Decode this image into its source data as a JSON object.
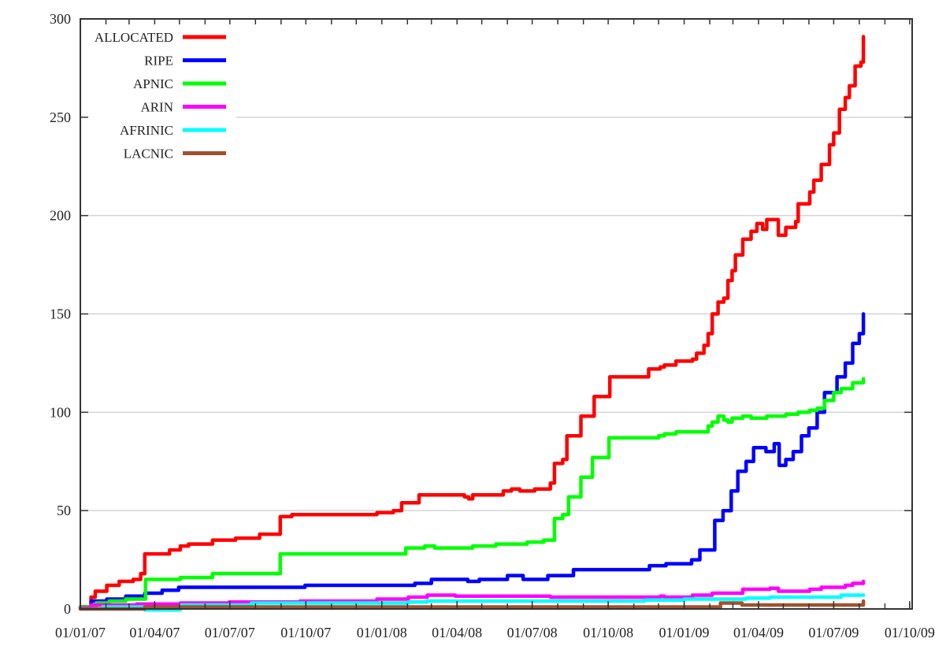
{
  "chart_data": {
    "type": "line",
    "title": "",
    "xlabel": "",
    "ylabel": "",
    "x_type": "date",
    "xlim": [
      "2007-01-01",
      "2009-10-04"
    ],
    "ylim": [
      0,
      300
    ],
    "grid": "horizontal",
    "legend_placement": "top-left",
    "interpolation": "step",
    "x_ticks": [
      "2007-01-01",
      "2007-04-01",
      "2007-07-01",
      "2007-10-01",
      "2008-01-01",
      "2008-04-01",
      "2008-07-01",
      "2008-10-01",
      "2009-01-01",
      "2009-04-01",
      "2009-07-01",
      "2009-10-01"
    ],
    "x_tick_labels": [
      "01/01/07",
      "01/04/07",
      "01/07/07",
      "01/10/07",
      "01/01/08",
      "01/04/08",
      "01/07/08",
      "01/10/08",
      "01/01/09",
      "01/04/09",
      "01/07/09",
      "01/10/09"
    ],
    "y_ticks": [
      0,
      50,
      100,
      150,
      200,
      250,
      300
    ],
    "y_tick_labels": [
      "0",
      "50",
      "100",
      "150",
      "200",
      "250",
      "300"
    ],
    "series": [
      {
        "name": "ALLOCATED",
        "color": "#ff0000",
        "points": [
          [
            "2007-01-01",
            1
          ],
          [
            "2007-01-14",
            6
          ],
          [
            "2007-01-19",
            9
          ],
          [
            "2007-02-02",
            12
          ],
          [
            "2007-02-17",
            14
          ],
          [
            "2007-03-06",
            15
          ],
          [
            "2007-03-15",
            18
          ],
          [
            "2007-03-20",
            28
          ],
          [
            "2007-04-14",
            28
          ],
          [
            "2007-04-19",
            30
          ],
          [
            "2007-05-02",
            32
          ],
          [
            "2007-05-12",
            33
          ],
          [
            "2007-06-10",
            35
          ],
          [
            "2007-07-08",
            36
          ],
          [
            "2007-08-06",
            38
          ],
          [
            "2007-08-31",
            47
          ],
          [
            "2007-09-14",
            48
          ],
          [
            "2007-12-26",
            49
          ],
          [
            "2008-01-15",
            50
          ],
          [
            "2008-01-25",
            54
          ],
          [
            "2008-02-15",
            58
          ],
          [
            "2008-03-12",
            58
          ],
          [
            "2008-04-10",
            57
          ],
          [
            "2008-04-15",
            56
          ],
          [
            "2008-04-20",
            58
          ],
          [
            "2008-05-27",
            60
          ],
          [
            "2008-06-06",
            61
          ],
          [
            "2008-06-16",
            60
          ],
          [
            "2008-07-04",
            61
          ],
          [
            "2008-07-23",
            64
          ],
          [
            "2008-07-28",
            74
          ],
          [
            "2008-08-07",
            76
          ],
          [
            "2008-08-12",
            88
          ],
          [
            "2008-08-29",
            98
          ],
          [
            "2008-09-14",
            108
          ],
          [
            "2008-10-03",
            118
          ],
          [
            "2008-11-14",
            118
          ],
          [
            "2008-11-19",
            122
          ],
          [
            "2008-12-03",
            123
          ],
          [
            "2008-12-08",
            124
          ],
          [
            "2008-12-22",
            126
          ],
          [
            "2009-01-11",
            127
          ],
          [
            "2009-01-16",
            130
          ],
          [
            "2009-01-25",
            134
          ],
          [
            "2009-01-30",
            140
          ],
          [
            "2009-02-04",
            150
          ],
          [
            "2009-02-11",
            156
          ],
          [
            "2009-02-18",
            158
          ],
          [
            "2009-02-23",
            167
          ],
          [
            "2009-02-28",
            172
          ],
          [
            "2009-03-04",
            180
          ],
          [
            "2009-03-13",
            188
          ],
          [
            "2009-03-23",
            192
          ],
          [
            "2009-03-30",
            196
          ],
          [
            "2009-04-06",
            193
          ],
          [
            "2009-04-11",
            198
          ],
          [
            "2009-04-20",
            198
          ],
          [
            "2009-04-25",
            190
          ],
          [
            "2009-05-04",
            194
          ],
          [
            "2009-05-16",
            197
          ],
          [
            "2009-05-19",
            206
          ],
          [
            "2009-06-02",
            212
          ],
          [
            "2009-06-07",
            218
          ],
          [
            "2009-06-16",
            226
          ],
          [
            "2009-06-26",
            236
          ],
          [
            "2009-07-01",
            242
          ],
          [
            "2009-07-08",
            254
          ],
          [
            "2009-07-15",
            260
          ],
          [
            "2009-07-20",
            266
          ],
          [
            "2009-07-27",
            276
          ],
          [
            "2009-08-03",
            278
          ],
          [
            "2009-08-06",
            291
          ]
        ]
      },
      {
        "name": "RIPE",
        "color": "#0000ff",
        "points": [
          [
            "2007-01-01",
            1
          ],
          [
            "2007-01-14",
            4
          ],
          [
            "2007-02-02",
            5
          ],
          [
            "2007-02-25",
            6.5
          ],
          [
            "2007-03-20",
            8
          ],
          [
            "2007-04-10",
            9.5
          ],
          [
            "2007-04-30",
            11
          ],
          [
            "2007-09-30",
            12
          ],
          [
            "2008-02-10",
            13
          ],
          [
            "2008-03-01",
            15
          ],
          [
            "2008-04-14",
            14
          ],
          [
            "2008-04-28",
            15
          ],
          [
            "2008-06-01",
            17
          ],
          [
            "2008-06-20",
            15
          ],
          [
            "2008-07-20",
            17
          ],
          [
            "2008-08-20",
            20
          ],
          [
            "2008-11-20",
            22
          ],
          [
            "2008-12-10",
            23
          ],
          [
            "2009-01-10",
            25
          ],
          [
            "2009-01-20",
            30
          ],
          [
            "2009-02-07",
            45
          ],
          [
            "2009-02-17",
            50
          ],
          [
            "2009-02-27",
            60
          ],
          [
            "2009-03-07",
            70
          ],
          [
            "2009-03-17",
            75
          ],
          [
            "2009-03-26",
            82
          ],
          [
            "2009-04-10",
            80
          ],
          [
            "2009-04-20",
            84
          ],
          [
            "2009-04-26",
            73
          ],
          [
            "2009-05-04",
            76
          ],
          [
            "2009-05-13",
            80
          ],
          [
            "2009-05-23",
            88
          ],
          [
            "2009-06-01",
            92
          ],
          [
            "2009-06-11",
            100
          ],
          [
            "2009-06-20",
            110
          ],
          [
            "2009-07-05",
            118
          ],
          [
            "2009-07-15",
            125
          ],
          [
            "2009-07-24",
            135
          ],
          [
            "2009-08-01",
            140
          ],
          [
            "2009-08-06",
            150
          ]
        ]
      },
      {
        "name": "APNIC",
        "color": "#00ff00",
        "points": [
          [
            "2007-01-01",
            1
          ],
          [
            "2007-01-20",
            3
          ],
          [
            "2007-02-05",
            4
          ],
          [
            "2007-02-25",
            5
          ],
          [
            "2007-03-21",
            15
          ],
          [
            "2007-05-02",
            16
          ],
          [
            "2007-06-10",
            18
          ],
          [
            "2007-08-31",
            28
          ],
          [
            "2008-01-25",
            28
          ],
          [
            "2008-01-30",
            31
          ],
          [
            "2008-02-22",
            32
          ],
          [
            "2008-03-05",
            31
          ],
          [
            "2008-04-20",
            32
          ],
          [
            "2008-05-18",
            33
          ],
          [
            "2008-06-25",
            34
          ],
          [
            "2008-07-15",
            35
          ],
          [
            "2008-07-28",
            46
          ],
          [
            "2008-08-07",
            48
          ],
          [
            "2008-08-14",
            57
          ],
          [
            "2008-08-29",
            67
          ],
          [
            "2008-09-12",
            77
          ],
          [
            "2008-10-02",
            87
          ],
          [
            "2008-12-01",
            88
          ],
          [
            "2008-12-08",
            89
          ],
          [
            "2008-12-22",
            90
          ],
          [
            "2009-01-25",
            90
          ],
          [
            "2009-01-30",
            93
          ],
          [
            "2009-02-04",
            95
          ],
          [
            "2009-02-11",
            98
          ],
          [
            "2009-02-18",
            96
          ],
          [
            "2009-02-23",
            95
          ],
          [
            "2009-02-28",
            97
          ],
          [
            "2009-03-13",
            98
          ],
          [
            "2009-03-23",
            97
          ],
          [
            "2009-04-11",
            98
          ],
          [
            "2009-05-04",
            99
          ],
          [
            "2009-05-19",
            100
          ],
          [
            "2009-06-02",
            101
          ],
          [
            "2009-06-11",
            102
          ],
          [
            "2009-06-20",
            106
          ],
          [
            "2009-07-01",
            110
          ],
          [
            "2009-07-10",
            112
          ],
          [
            "2009-07-24",
            115
          ],
          [
            "2009-08-06",
            117
          ]
        ]
      },
      {
        "name": "ARIN",
        "color": "#ff00ff",
        "points": [
          [
            "2007-01-01",
            0.5
          ],
          [
            "2007-01-14",
            2
          ],
          [
            "2007-03-10",
            2.5
          ],
          [
            "2007-05-02",
            3
          ],
          [
            "2007-06-30",
            3.5
          ],
          [
            "2007-09-24",
            4
          ],
          [
            "2007-12-26",
            5
          ],
          [
            "2008-02-02",
            6
          ],
          [
            "2008-02-25",
            7
          ],
          [
            "2008-03-30",
            6.5
          ],
          [
            "2008-07-23",
            6
          ],
          [
            "2008-12-03",
            6.5
          ],
          [
            "2008-12-08",
            6
          ],
          [
            "2009-01-11",
            7
          ],
          [
            "2009-02-04",
            8
          ],
          [
            "2009-03-13",
            10
          ],
          [
            "2009-04-15",
            10.5
          ],
          [
            "2009-04-25",
            9
          ],
          [
            "2009-06-02",
            10
          ],
          [
            "2009-06-16",
            11
          ],
          [
            "2009-07-15",
            12
          ],
          [
            "2009-07-24",
            13
          ],
          [
            "2009-08-06",
            14
          ]
        ]
      },
      {
        "name": "AFRINIC",
        "color": "#00ffff",
        "points": [
          [
            "2007-01-01",
            0
          ],
          [
            "2007-01-28",
            1
          ],
          [
            "2007-03-20",
            -0.5
          ],
          [
            "2007-05-02",
            2
          ],
          [
            "2007-07-27",
            3
          ],
          [
            "2008-02-02",
            3.5
          ],
          [
            "2008-02-25",
            4
          ],
          [
            "2008-11-14",
            4.5
          ],
          [
            "2009-01-01",
            5
          ],
          [
            "2009-03-17",
            5.5
          ],
          [
            "2009-04-15",
            6
          ],
          [
            "2009-07-10",
            7
          ],
          [
            "2009-08-06",
            7
          ]
        ]
      },
      {
        "name": "LACNIC",
        "color": "#a0522d",
        "points": [
          [
            "2007-01-01",
            0
          ],
          [
            "2007-03-20",
            1
          ],
          [
            "2009-02-14",
            3
          ],
          [
            "2009-03-12",
            2
          ],
          [
            "2009-08-03",
            2
          ],
          [
            "2009-08-06",
            4
          ]
        ]
      }
    ]
  }
}
